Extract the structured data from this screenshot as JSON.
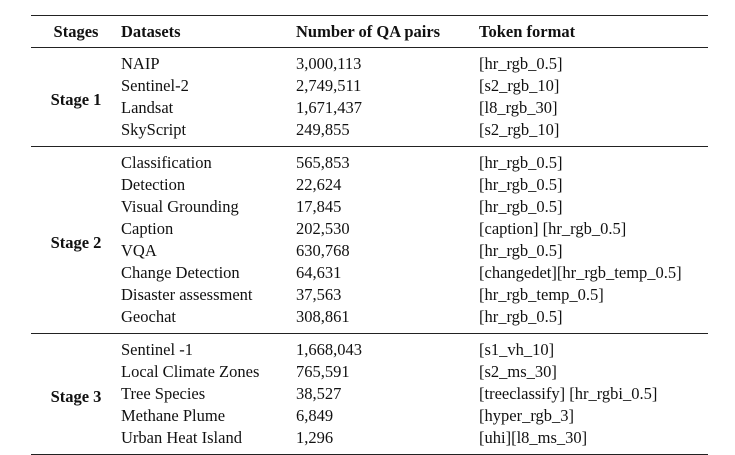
{
  "headers": [
    "Stages",
    "Datasets",
    "Number of QA pairs",
    "Token format"
  ],
  "groups": [
    {
      "stage": "Stage 1",
      "rows": [
        [
          "NAIP",
          "3,000,113",
          "[hr_rgb_0.5]"
        ],
        [
          "Sentinel-2",
          "2,749,511",
          "[s2_rgb_10]"
        ],
        [
          "Landsat",
          "1,671,437",
          "[l8_rgb_30]"
        ],
        [
          "SkyScript",
          "249,855",
          "[s2_rgb_10]"
        ]
      ]
    },
    {
      "stage": "Stage 2",
      "rows": [
        [
          "Classification",
          "565,853",
          "[hr_rgb_0.5]"
        ],
        [
          "Detection",
          "22,624",
          "[hr_rgb_0.5]"
        ],
        [
          "Visual Grounding",
          "17,845",
          "[hr_rgb_0.5]"
        ],
        [
          "Caption",
          "202,530",
          "[caption] [hr_rgb_0.5]"
        ],
        [
          "VQA",
          "630,768",
          "[hr_rgb_0.5]"
        ],
        [
          "Change Detection",
          "64,631",
          "[changedet][hr_rgb_temp_0.5]"
        ],
        [
          "Disaster assessment",
          "37,563",
          "[hr_rgb_temp_0.5]"
        ],
        [
          "Geochat",
          "308,861",
          "[hr_rgb_0.5]"
        ]
      ]
    },
    {
      "stage": "Stage 3",
      "rows": [
        [
          "Sentinel -1",
          "1,668,043",
          "[s1_vh_10]"
        ],
        [
          "Local Climate Zones",
          "765,591",
          "[s2_ms_30]"
        ],
        [
          "Tree Species",
          "38,527",
          "[treeclassify] [hr_rgbi_0.5]"
        ],
        [
          "Methane Plume",
          "6,849",
          "[hyper_rgb_3]"
        ],
        [
          "Urban Heat Island",
          "1,296",
          "[uhi][l8_ms_30]"
        ]
      ]
    }
  ]
}
